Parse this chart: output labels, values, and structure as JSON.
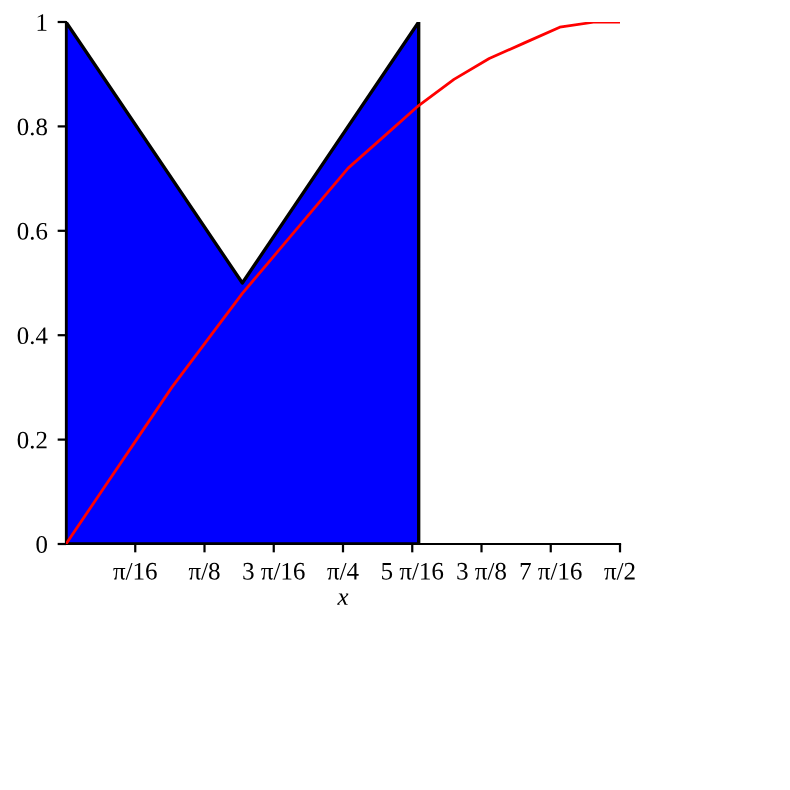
{
  "chart_data": {
    "type": "area",
    "xlabel": "x",
    "series": [
      {
        "color": "#0000ff",
        "x": [
          0,
          0.5,
          1.0
        ],
        "values": [
          1,
          0.5,
          1
        ]
      },
      {
        "type": "line",
        "color": "#ff0000",
        "x": [
          0,
          0.1,
          0.2,
          0.3,
          0.4,
          0.5,
          0.6,
          0.7,
          0.8,
          0.9,
          1.0,
          1.1,
          1.2,
          1.3,
          1.4,
          1.5,
          1.5708
        ],
        "values": [
          0,
          0.1,
          0.2,
          0.3,
          0.39,
          0.48,
          0.56,
          0.64,
          0.72,
          0.78,
          0.84,
          0.89,
          0.93,
          0.96,
          0.99,
          1.0,
          1.0
        ]
      }
    ],
    "xlim": [
      0,
      1.5708
    ],
    "ylim": [
      0,
      1
    ],
    "xticks": [
      {
        "value": 0.19635,
        "label": "π/16"
      },
      {
        "value": 0.3927,
        "label": "π/8"
      },
      {
        "value": 0.58905,
        "label": "3 π/16"
      },
      {
        "value": 0.7854,
        "label": "π/4"
      },
      {
        "value": 0.98175,
        "label": "5 π/16"
      },
      {
        "value": 1.1781,
        "label": "3 π/8"
      },
      {
        "value": 1.37445,
        "label": "7 π/16"
      },
      {
        "value": 1.5708,
        "label": "π/2"
      }
    ],
    "yticks": [
      0,
      0.2,
      0.4,
      0.6,
      0.8,
      1
    ],
    "grid": false,
    "legend": false
  }
}
